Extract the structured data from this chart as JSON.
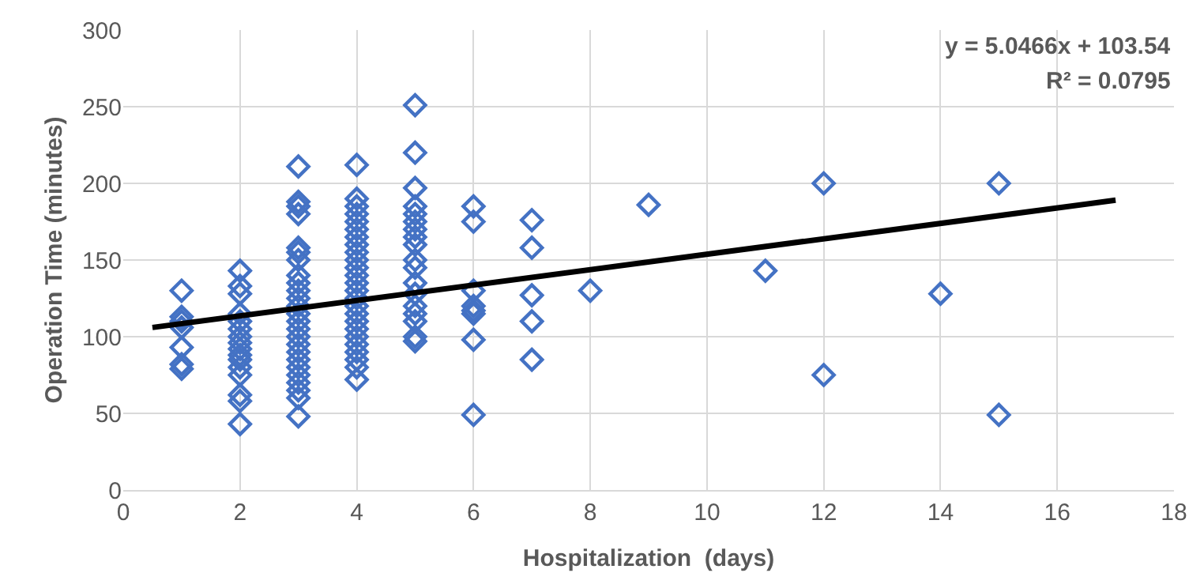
{
  "chart_data": {
    "type": "scatter",
    "xlabel": "Hospitalization  (days)",
    "ylabel": "Operation Time (minutes)",
    "annotations": [
      "y = 5.0466x + 103.54",
      "R² = 0.0795"
    ],
    "xlim": [
      0,
      18
    ],
    "xticks": [
      0,
      2,
      4,
      6,
      8,
      10,
      12,
      14,
      16,
      18
    ],
    "ylim": [
      0,
      300
    ],
    "yticks": [
      0,
      50,
      100,
      150,
      200,
      250,
      300
    ],
    "grid": true,
    "marker": "diamond",
    "series": [
      {
        "color": "#4472c4",
        "x": [
          1,
          1,
          1,
          1,
          1,
          1,
          1,
          2,
          2,
          2,
          2,
          2,
          2,
          2,
          2,
          2,
          2,
          2,
          2,
          2,
          2,
          2,
          2,
          3,
          3,
          3,
          3,
          3,
          3,
          3,
          3,
          3,
          3,
          3,
          3,
          3,
          3,
          3,
          3,
          3,
          3,
          3,
          3,
          3,
          3,
          3,
          3,
          3,
          4,
          4,
          4,
          4,
          4,
          4,
          4,
          4,
          4,
          4,
          4,
          4,
          4,
          4,
          4,
          4,
          4,
          4,
          4,
          4,
          4,
          4,
          4,
          4,
          4,
          5,
          5,
          5,
          5,
          5,
          5,
          5,
          5,
          5,
          5,
          5,
          5,
          5,
          5,
          5,
          5,
          5,
          5,
          6,
          6,
          6,
          6,
          6,
          6,
          6,
          6,
          7,
          7,
          7,
          7,
          7,
          8,
          9,
          11,
          12,
          12,
          14,
          15,
          15
        ],
        "values": [
          130,
          113,
          110,
          106,
          93,
          82,
          79,
          143,
          133,
          128,
          115,
          110,
          105,
          100,
          96,
          92,
          88,
          85,
          80,
          75,
          62,
          58,
          43,
          211,
          188,
          185,
          180,
          158,
          155,
          150,
          140,
          135,
          130,
          125,
          120,
          115,
          110,
          105,
          100,
          95,
          90,
          85,
          80,
          75,
          70,
          65,
          60,
          48,
          212,
          190,
          185,
          180,
          175,
          170,
          165,
          160,
          155,
          150,
          145,
          140,
          135,
          130,
          125,
          120,
          115,
          110,
          105,
          100,
          95,
          90,
          85,
          80,
          72,
          251,
          220,
          197,
          185,
          180,
          175,
          170,
          165,
          160,
          150,
          145,
          135,
          128,
          120,
          115,
          110,
          100,
          97,
          185,
          175,
          130,
          120,
          117,
          115,
          98,
          49,
          176,
          158,
          127,
          110,
          85,
          130,
          186,
          143,
          200,
          75,
          128,
          200,
          49
        ]
      },
      {
        "type": "line",
        "color": "#000000",
        "marker": "none",
        "line_style": "solid",
        "x": [
          0.5,
          17
        ],
        "values": [
          106,
          189
        ]
      }
    ]
  }
}
